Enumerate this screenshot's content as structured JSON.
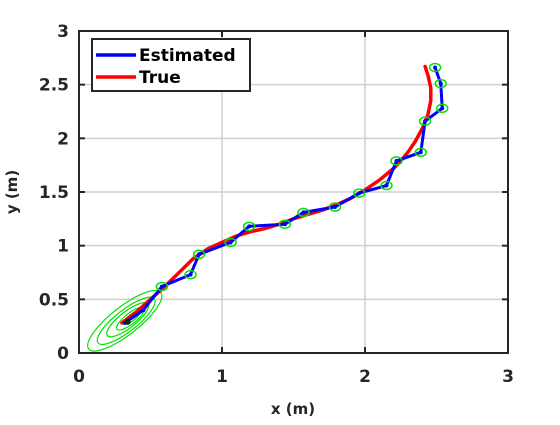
{
  "chart_data": {
    "type": "line",
    "xlabel": "x (m)",
    "ylabel": "y (m)",
    "xlim": [
      0,
      3
    ],
    "ylim": [
      0,
      3
    ],
    "x_ticks": [
      "0",
      "1",
      "2",
      "3"
    ],
    "y_ticks": [
      "0",
      "0.5",
      "1",
      "1.5",
      "2",
      "2.5",
      "3"
    ],
    "grid": true,
    "legend_position": "top-left",
    "series": [
      {
        "name": "Estimated",
        "color": "#0000ff",
        "x": [
          0.32,
          0.45,
          0.58,
          0.78,
          0.84,
          1.06,
          1.19,
          1.44,
          1.57,
          1.79,
          1.96,
          2.15,
          2.22,
          2.39,
          2.42,
          2.54,
          2.53,
          2.49
        ],
        "y": [
          0.28,
          0.4,
          0.62,
          0.73,
          0.92,
          1.03,
          1.18,
          1.2,
          1.31,
          1.36,
          1.49,
          1.56,
          1.79,
          1.87,
          2.16,
          2.28,
          2.51,
          2.66
        ]
      },
      {
        "name": "True",
        "color": "#ff0000",
        "x": [
          0.3,
          0.4,
          0.5,
          0.6,
          0.7,
          0.8,
          0.9,
          1.0,
          1.1,
          1.2,
          1.3,
          1.4,
          1.5,
          1.6,
          1.7,
          1.8,
          1.9,
          2.0,
          2.1,
          2.2,
          2.25,
          2.3,
          2.35,
          2.4,
          2.44,
          2.46,
          2.46,
          2.44,
          2.42
        ],
        "y": [
          0.28,
          0.38,
          0.5,
          0.62,
          0.75,
          0.88,
          0.97,
          1.03,
          1.09,
          1.13,
          1.16,
          1.2,
          1.25,
          1.29,
          1.33,
          1.38,
          1.44,
          1.52,
          1.61,
          1.72,
          1.79,
          1.87,
          1.97,
          2.09,
          2.22,
          2.35,
          2.47,
          2.59,
          2.67
        ]
      }
    ],
    "covariance_ellipses_color": "#00e000"
  }
}
